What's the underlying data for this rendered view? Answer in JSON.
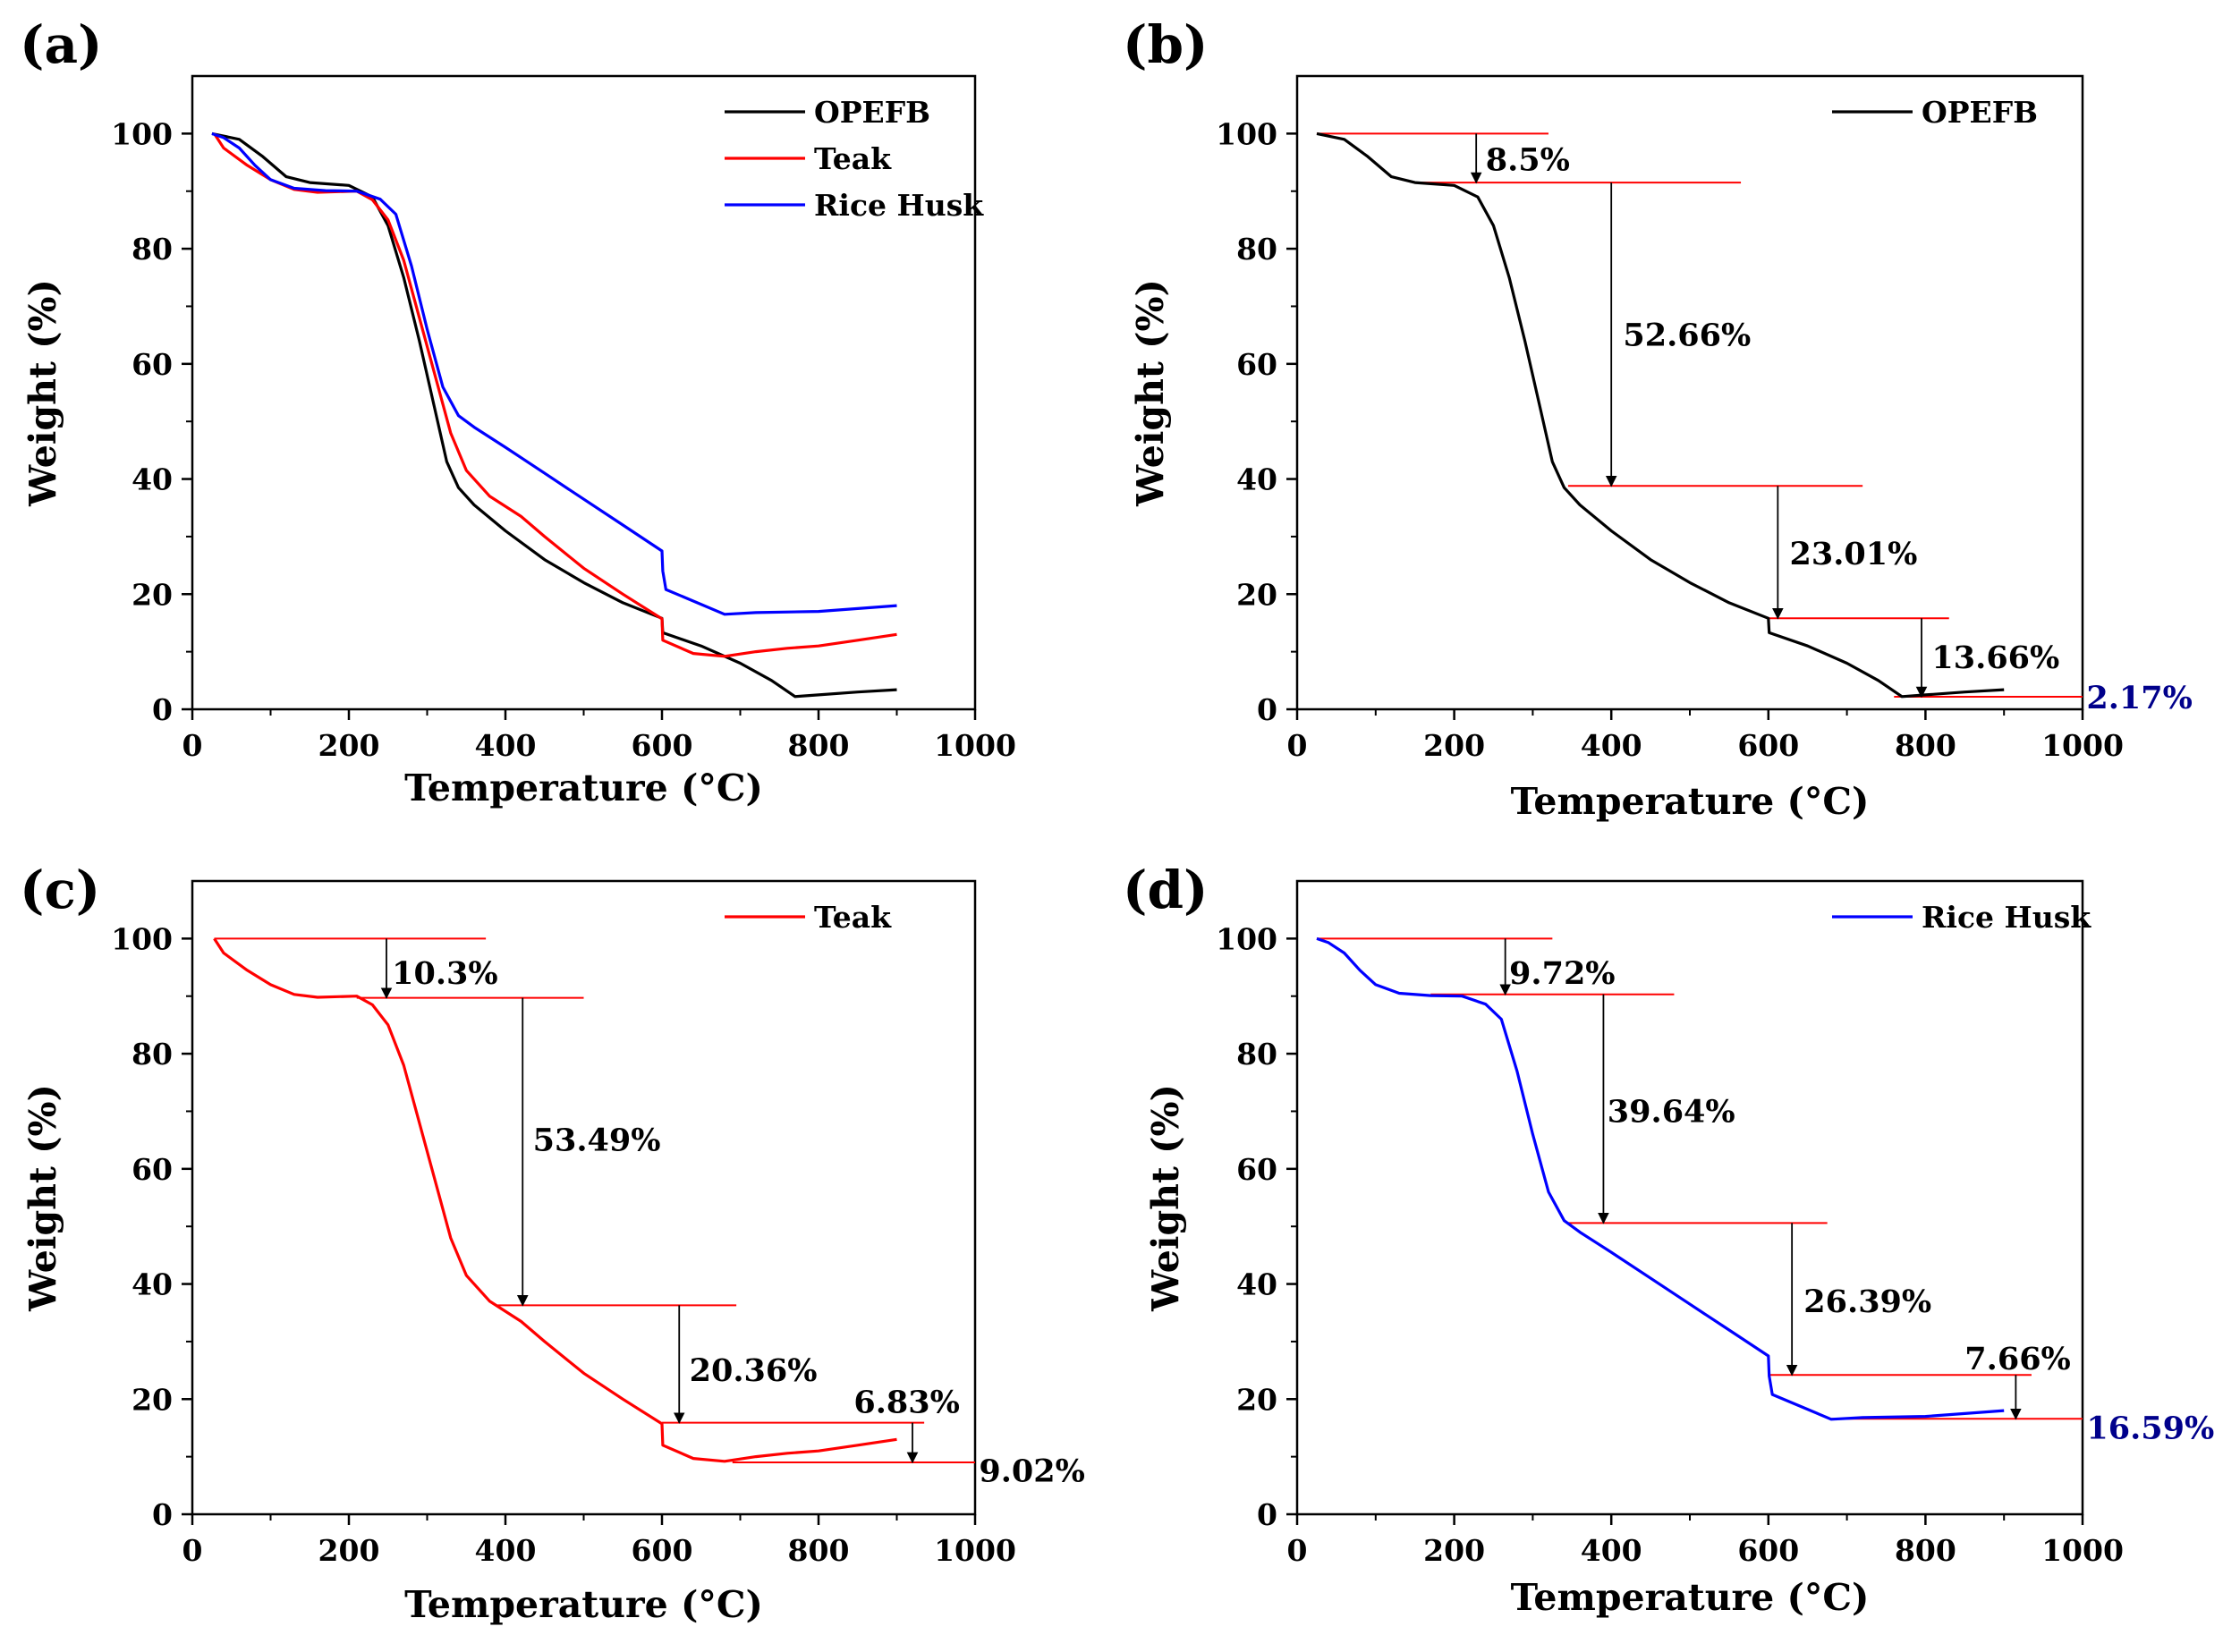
{
  "chart_data": [
    {
      "type": "line",
      "panel_label": "(a)",
      "xlabel": "Temperature (°C)",
      "ylabel": "Weight (%)",
      "xlim": [
        0,
        1000
      ],
      "ylim": [
        0,
        110
      ],
      "xticks": [
        0,
        200,
        400,
        600,
        800,
        1000
      ],
      "yticks": [
        0,
        20,
        40,
        60,
        80,
        100
      ],
      "legend": "top-right",
      "series": [
        {
          "name": "OPEFB",
          "color": "#000000",
          "points": [
            [
              25,
              100
            ],
            [
              60,
              99
            ],
            [
              90,
              96
            ],
            [
              120,
              92.5
            ],
            [
              150,
              91.5
            ],
            [
              200,
              91
            ],
            [
              230,
              89
            ],
            [
              250,
              84
            ],
            [
              270,
              75
            ],
            [
              290,
              64
            ],
            [
              310,
              52
            ],
            [
              325,
              43
            ],
            [
              340,
              38.5
            ],
            [
              360,
              35.5
            ],
            [
              400,
              31
            ],
            [
              450,
              26
            ],
            [
              500,
              22
            ],
            [
              550,
              18.5
            ],
            [
              600,
              15.8
            ],
            [
              601,
              13.3
            ],
            [
              650,
              11
            ],
            [
              700,
              8
            ],
            [
              740,
              5
            ],
            [
              770,
              2.2
            ],
            [
              800,
              2.5
            ],
            [
              850,
              3
            ],
            [
              900,
              3.4
            ]
          ]
        },
        {
          "name": "Teak",
          "color": "#ff0000",
          "points": [
            [
              28,
              100
            ],
            [
              40,
              97.5
            ],
            [
              70,
              94.5
            ],
            [
              100,
              92
            ],
            [
              130,
              90.3
            ],
            [
              160,
              89.8
            ],
            [
              210,
              90
            ],
            [
              230,
              88.5
            ],
            [
              250,
              85
            ],
            [
              270,
              78
            ],
            [
              290,
              68
            ],
            [
              310,
              58
            ],
            [
              330,
              48
            ],
            [
              350,
              41.5
            ],
            [
              380,
              37
            ],
            [
              420,
              33.5
            ],
            [
              450,
              30
            ],
            [
              500,
              24.5
            ],
            [
              550,
              20
            ],
            [
              600,
              15.7
            ],
            [
              601,
              12
            ],
            [
              640,
              9.7
            ],
            [
              680,
              9.2
            ],
            [
              720,
              10
            ],
            [
              760,
              10.6
            ],
            [
              800,
              11
            ],
            [
              850,
              12
            ],
            [
              900,
              13
            ]
          ]
        },
        {
          "name": "Rice Husk",
          "color": "#0000ff",
          "points": [
            [
              25,
              100
            ],
            [
              40,
              99.3
            ],
            [
              60,
              97.5
            ],
            [
              80,
              94.5
            ],
            [
              100,
              92
            ],
            [
              130,
              90.5
            ],
            [
              170,
              90.1
            ],
            [
              210,
              90
            ],
            [
              240,
              88.6
            ],
            [
              260,
              86
            ],
            [
              280,
              77
            ],
            [
              300,
              66
            ],
            [
              320,
              56
            ],
            [
              340,
              51
            ],
            [
              360,
              49
            ],
            [
              400,
              45.5
            ],
            [
              450,
              41
            ],
            [
              500,
              36.5
            ],
            [
              550,
              32
            ],
            [
              600,
              27.5
            ],
            [
              601,
              24
            ],
            [
              605,
              20.8
            ],
            [
              640,
              18.8
            ],
            [
              680,
              16.5
            ],
            [
              720,
              16.8
            ],
            [
              800,
              17
            ],
            [
              850,
              17.5
            ],
            [
              900,
              18
            ]
          ]
        }
      ]
    },
    {
      "type": "line",
      "panel_label": "(b)",
      "xlabel": "Temperature (°C)",
      "ylabel": "Weight (%)",
      "xlim": [
        0,
        1000
      ],
      "ylim": [
        0,
        110
      ],
      "xticks": [
        0,
        200,
        400,
        600,
        800,
        1000
      ],
      "yticks": [
        0,
        20,
        40,
        60,
        80,
        100
      ],
      "legend": "top-right",
      "series": [
        {
          "name": "OPEFB",
          "color": "#000000",
          "points": [
            [
              25,
              100
            ],
            [
              60,
              99
            ],
            [
              90,
              96
            ],
            [
              120,
              92.5
            ],
            [
              150,
              91.5
            ],
            [
              200,
              91
            ],
            [
              230,
              89
            ],
            [
              250,
              84
            ],
            [
              270,
              75
            ],
            [
              290,
              64
            ],
            [
              310,
              52
            ],
            [
              325,
              43
            ],
            [
              340,
              38.5
            ],
            [
              360,
              35.5
            ],
            [
              400,
              31
            ],
            [
              450,
              26
            ],
            [
              500,
              22
            ],
            [
              550,
              18.5
            ],
            [
              600,
              15.8
            ],
            [
              601,
              13.3
            ],
            [
              650,
              11
            ],
            [
              700,
              8
            ],
            [
              740,
              5
            ],
            [
              770,
              2.2
            ],
            [
              800,
              2.5
            ],
            [
              850,
              3
            ],
            [
              900,
              3.4
            ]
          ]
        }
      ],
      "ref_lines": [
        [
          25,
          320,
          100
        ],
        [
          150,
          565,
          91.5
        ],
        [
          345,
          720,
          38.8
        ],
        [
          600,
          830,
          15.8
        ],
        [
          760,
          1000,
          2.17
        ]
      ],
      "arrows": [
        [
          228,
          100,
          91.5
        ],
        [
          400,
          91.5,
          38.8
        ],
        [
          612,
          38.8,
          15.8
        ],
        [
          795,
          15.8,
          2.17
        ]
      ],
      "annotations": [
        {
          "text": "8.5%",
          "x": 240,
          "y": 95.5,
          "anchor": "start",
          "color": "#000000"
        },
        {
          "text": "52.66%",
          "x": 415,
          "y": 65,
          "anchor": "start",
          "color": "#000000"
        },
        {
          "text": "23.01%",
          "x": 627,
          "y": 27,
          "anchor": "start",
          "color": "#000000"
        },
        {
          "text": "13.66%",
          "x": 808,
          "y": 9,
          "anchor": "start",
          "color": "#000000"
        },
        {
          "text": "2.17%",
          "x": 1005,
          "y": 2,
          "anchor": "start",
          "color": "#00008b"
        }
      ]
    },
    {
      "type": "line",
      "panel_label": "(c)",
      "xlabel": "Temperature (°C)",
      "ylabel": "Weight (%)",
      "xlim": [
        0,
        1000
      ],
      "ylim": [
        0,
        110
      ],
      "xticks": [
        0,
        200,
        400,
        600,
        800,
        1000
      ],
      "yticks": [
        0,
        20,
        40,
        60,
        80,
        100
      ],
      "legend": "top-right",
      "series": [
        {
          "name": "Teak",
          "color": "#ff0000",
          "points": [
            [
              28,
              100
            ],
            [
              40,
              97.5
            ],
            [
              70,
              94.5
            ],
            [
              100,
              92
            ],
            [
              130,
              90.3
            ],
            [
              160,
              89.8
            ],
            [
              210,
              90
            ],
            [
              230,
              88.5
            ],
            [
              250,
              85
            ],
            [
              270,
              78
            ],
            [
              290,
              68
            ],
            [
              310,
              58
            ],
            [
              330,
              48
            ],
            [
              350,
              41.5
            ],
            [
              380,
              37
            ],
            [
              420,
              33.5
            ],
            [
              450,
              30
            ],
            [
              500,
              24.5
            ],
            [
              550,
              20
            ],
            [
              600,
              15.7
            ],
            [
              601,
              12
            ],
            [
              640,
              9.7
            ],
            [
              680,
              9.2
            ],
            [
              720,
              10
            ],
            [
              760,
              10.6
            ],
            [
              800,
              11
            ],
            [
              850,
              12
            ],
            [
              900,
              13
            ]
          ]
        }
      ],
      "ref_lines": [
        [
          28,
          375,
          100
        ],
        [
          210,
          500,
          89.7
        ],
        [
          390,
          695,
          36.3
        ],
        [
          600,
          935,
          15.9
        ],
        [
          690,
          1000,
          9.02
        ]
      ],
      "arrows": [
        [
          248,
          100,
          89.7
        ],
        [
          422,
          89.7,
          36.3
        ],
        [
          622,
          36.3,
          15.9
        ],
        [
          920,
          15.9,
          9.02
        ]
      ],
      "annotations": [
        {
          "text": "10.3%",
          "x": 255,
          "y": 94,
          "anchor": "start",
          "color": "#000000"
        },
        {
          "text": "53.49%",
          "x": 435,
          "y": 65,
          "anchor": "start",
          "color": "#000000"
        },
        {
          "text": "20.36%",
          "x": 635,
          "y": 25,
          "anchor": "start",
          "color": "#000000"
        },
        {
          "text": "6.83%",
          "x": 845,
          "y": 19.5,
          "anchor": "start",
          "color": "#000000"
        },
        {
          "text": "9.02%",
          "x": 1005,
          "y": 7.5,
          "anchor": "start",
          "color": "#000000"
        }
      ]
    },
    {
      "type": "line",
      "panel_label": "(d)",
      "xlabel": "Temperature (°C)",
      "ylabel": "Weight (%)",
      "xlim": [
        0,
        1000
      ],
      "ylim": [
        0,
        110
      ],
      "xticks": [
        0,
        200,
        400,
        600,
        800,
        1000
      ],
      "yticks": [
        0,
        20,
        40,
        60,
        80,
        100
      ],
      "legend": "top-right",
      "series": [
        {
          "name": "Rice Husk",
          "color": "#0000ff",
          "points": [
            [
              25,
              100
            ],
            [
              40,
              99.3
            ],
            [
              60,
              97.5
            ],
            [
              80,
              94.5
            ],
            [
              100,
              92
            ],
            [
              130,
              90.5
            ],
            [
              170,
              90.1
            ],
            [
              210,
              90
            ],
            [
              240,
              88.6
            ],
            [
              260,
              86
            ],
            [
              280,
              77
            ],
            [
              300,
              66
            ],
            [
              320,
              56
            ],
            [
              340,
              51
            ],
            [
              360,
              49
            ],
            [
              400,
              45.5
            ],
            [
              450,
              41
            ],
            [
              500,
              36.5
            ],
            [
              550,
              32
            ],
            [
              600,
              27.5
            ],
            [
              601,
              24
            ],
            [
              605,
              20.8
            ],
            [
              640,
              18.8
            ],
            [
              680,
              16.5
            ],
            [
              720,
              16.8
            ],
            [
              800,
              17
            ],
            [
              850,
              17.5
            ],
            [
              900,
              18
            ]
          ]
        }
      ],
      "ref_lines": [
        [
          25,
          325,
          100
        ],
        [
          170,
          480,
          90.3
        ],
        [
          345,
          675,
          50.6
        ],
        [
          600,
          935,
          24.2
        ],
        [
          680,
          1000,
          16.59
        ]
      ],
      "arrows": [
        [
          265,
          100,
          90.3
        ],
        [
          390,
          90.3,
          50.6
        ],
        [
          630,
          50.6,
          24.2
        ],
        [
          915,
          24.2,
          16.59
        ]
      ],
      "annotations": [
        {
          "text": "9.72%",
          "x": 270,
          "y": 94,
          "anchor": "start",
          "color": "#000000"
        },
        {
          "text": "39.64%",
          "x": 395,
          "y": 70,
          "anchor": "start",
          "color": "#000000"
        },
        {
          "text": "26.39%",
          "x": 645,
          "y": 37,
          "anchor": "start",
          "color": "#000000"
        },
        {
          "text": "7.66%",
          "x": 850,
          "y": 27,
          "anchor": "start",
          "color": "#000000"
        },
        {
          "text": "16.59%",
          "x": 1005,
          "y": 15,
          "anchor": "start",
          "color": "#00008b"
        }
      ]
    }
  ]
}
